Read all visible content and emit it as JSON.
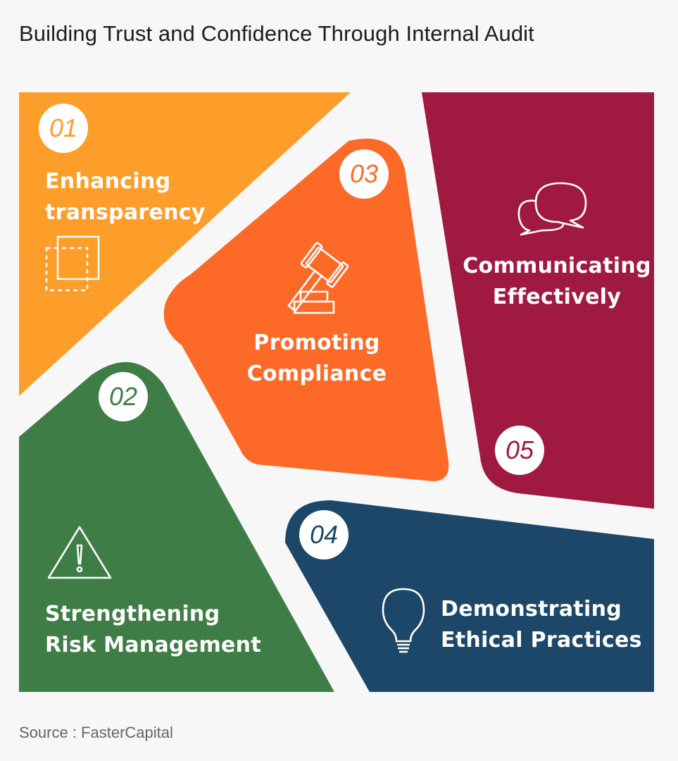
{
  "title": "Building Trust and Confidence Through Internal Audit",
  "source": "Source : FasterCapital",
  "colors": {
    "orange_light": "#fd9e2a",
    "orange": "#fd6a28",
    "green": "#3f7d46",
    "navy": "#1c4768",
    "maroon": "#a01941",
    "background": "#f7f7f7"
  },
  "items": [
    {
      "number": "01",
      "line1": "Enhancing",
      "line2": "transparency",
      "icon": "transparency-squares-icon"
    },
    {
      "number": "02",
      "line1": "Strengthening",
      "line2": "Risk Management",
      "icon": "warning-triangle-icon"
    },
    {
      "number": "03",
      "line1": "Promoting",
      "line2": "Compliance",
      "icon": "gavel-icon"
    },
    {
      "number": "04",
      "line1": "Demonstrating",
      "line2": "Ethical Practices",
      "icon": "lightbulb-icon"
    },
    {
      "number": "05",
      "line1": "Communicating",
      "line2": "Effectively",
      "icon": "speech-bubbles-icon"
    }
  ]
}
